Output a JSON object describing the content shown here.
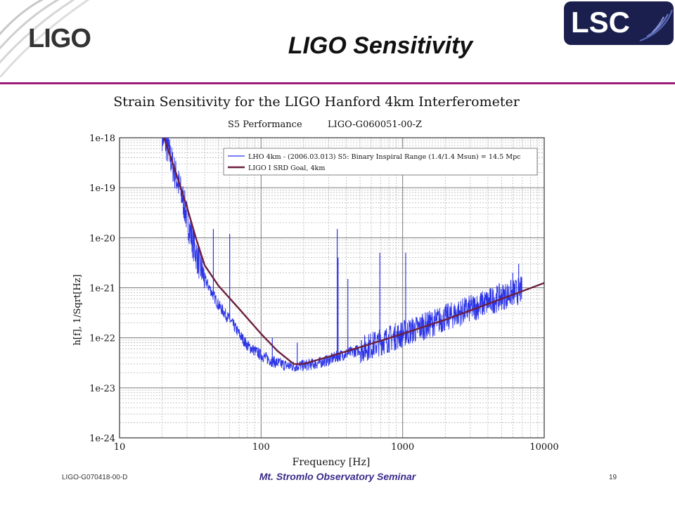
{
  "header": {
    "ligo_logo_text": "LIGO",
    "lsc_logo_text": "LSC",
    "title": "LIGO Sensitivity"
  },
  "footer": {
    "doc_id": "LIGO-G070418-00-D",
    "seminar": "Mt. Stromlo Observatory Seminar",
    "page_number": "19"
  },
  "colors": {
    "accent_rule": "#9b1c74",
    "measured_series": "#2b33e6",
    "goal_series": "#6b1f3e",
    "logo_navy": "#1a1f4e"
  },
  "chart_data": {
    "type": "line",
    "title": "Strain Sensitivity for the LIGO Hanford 4km Interferometer",
    "subtitle_left": "S5 Performance",
    "subtitle_right": "LIGO-G060051-00-Z",
    "xlabel": "Frequency [Hz]",
    "ylabel": "h[f], 1/Sqrt[Hz]",
    "x_scale": "log",
    "y_scale": "log",
    "xlim": [
      10,
      10000
    ],
    "ylim": [
      1e-24,
      1e-18
    ],
    "x_ticks": [
      10,
      100,
      1000,
      10000
    ],
    "x_tick_labels": [
      "10",
      "100",
      "1000",
      "10000"
    ],
    "y_ticks": [
      1e-18,
      1e-19,
      1e-20,
      1e-21,
      1e-22,
      1e-23,
      1e-24
    ],
    "y_tick_labels": [
      "1e-18",
      "1e-19",
      "1e-20",
      "1e-21",
      "1e-22",
      "1e-23",
      "1e-24"
    ],
    "grid": true,
    "legend_position": "top-right",
    "series": [
      {
        "name": "LHO 4km - (2006.03.013) S5: Binary Inspiral Range (1.4/1.4 Msun) = 14.5 Mpc",
        "style": "noisy-measured",
        "x": [
          20,
          22,
          24,
          26,
          28,
          30,
          33,
          36,
          40,
          45,
          50,
          60,
          70,
          80,
          100,
          120,
          150,
          170,
          200,
          250,
          300,
          350,
          400,
          500,
          600,
          700,
          800,
          1000,
          1500,
          2000,
          3000,
          4000,
          5000,
          6000,
          7000
        ],
        "y": [
          1.2e-18,
          6e-19,
          2.5e-19,
          1.2e-19,
          6e-20,
          2.5e-20,
          8e-21,
          3.5e-21,
          1.5e-21,
          8e-22,
          4.5e-22,
          2.3e-22,
          1.2e-22,
          7e-23,
          4.5e-23,
          3.4e-23,
          2.8e-23,
          2.7e-23,
          2.8e-23,
          3.1e-23,
          3.6e-23,
          4.3e-23,
          4.8e-23,
          5.8e-23,
          7e-23,
          8.3e-23,
          9.5e-23,
          1.2e-22,
          1.8e-22,
          2.5e-22,
          3.8e-22,
          5.2e-22,
          6.6e-22,
          7.8e-22,
          9e-22
        ],
        "spikes": [
          {
            "x": 46,
            "y": 1.5e-20
          },
          {
            "x": 60,
            "y": 1.2e-20
          },
          {
            "x": 120,
            "y": 1e-22
          },
          {
            "x": 180,
            "y": 8e-23
          },
          {
            "x": 345,
            "y": 1.5e-20
          },
          {
            "x": 350,
            "y": 4e-21
          },
          {
            "x": 410,
            "y": 1.5e-21
          },
          {
            "x": 690,
            "y": 5e-21
          },
          {
            "x": 1050,
            "y": 5e-21
          },
          {
            "x": 1380,
            "y": 3e-22
          },
          {
            "x": 6000,
            "y": 2e-21
          },
          {
            "x": 6600,
            "y": 3e-21
          }
        ]
      },
      {
        "name": "LIGO I SRD Goal, 4km",
        "style": "smooth-goal",
        "x": [
          20,
          25,
          30,
          35,
          40,
          50,
          70,
          100,
          130,
          170,
          200,
          300,
          500,
          1000,
          2000,
          5000,
          10000
        ],
        "y": [
          1.3e-18,
          2e-19,
          4e-20,
          9e-21,
          2.8e-21,
          1.1e-21,
          3.8e-22,
          1.2e-22,
          5.5e-23,
          3e-23,
          3e-23,
          4.2e-23,
          6.5e-23,
          1.2e-22,
          2.3e-22,
          6e-22,
          1.25e-21
        ]
      }
    ]
  }
}
